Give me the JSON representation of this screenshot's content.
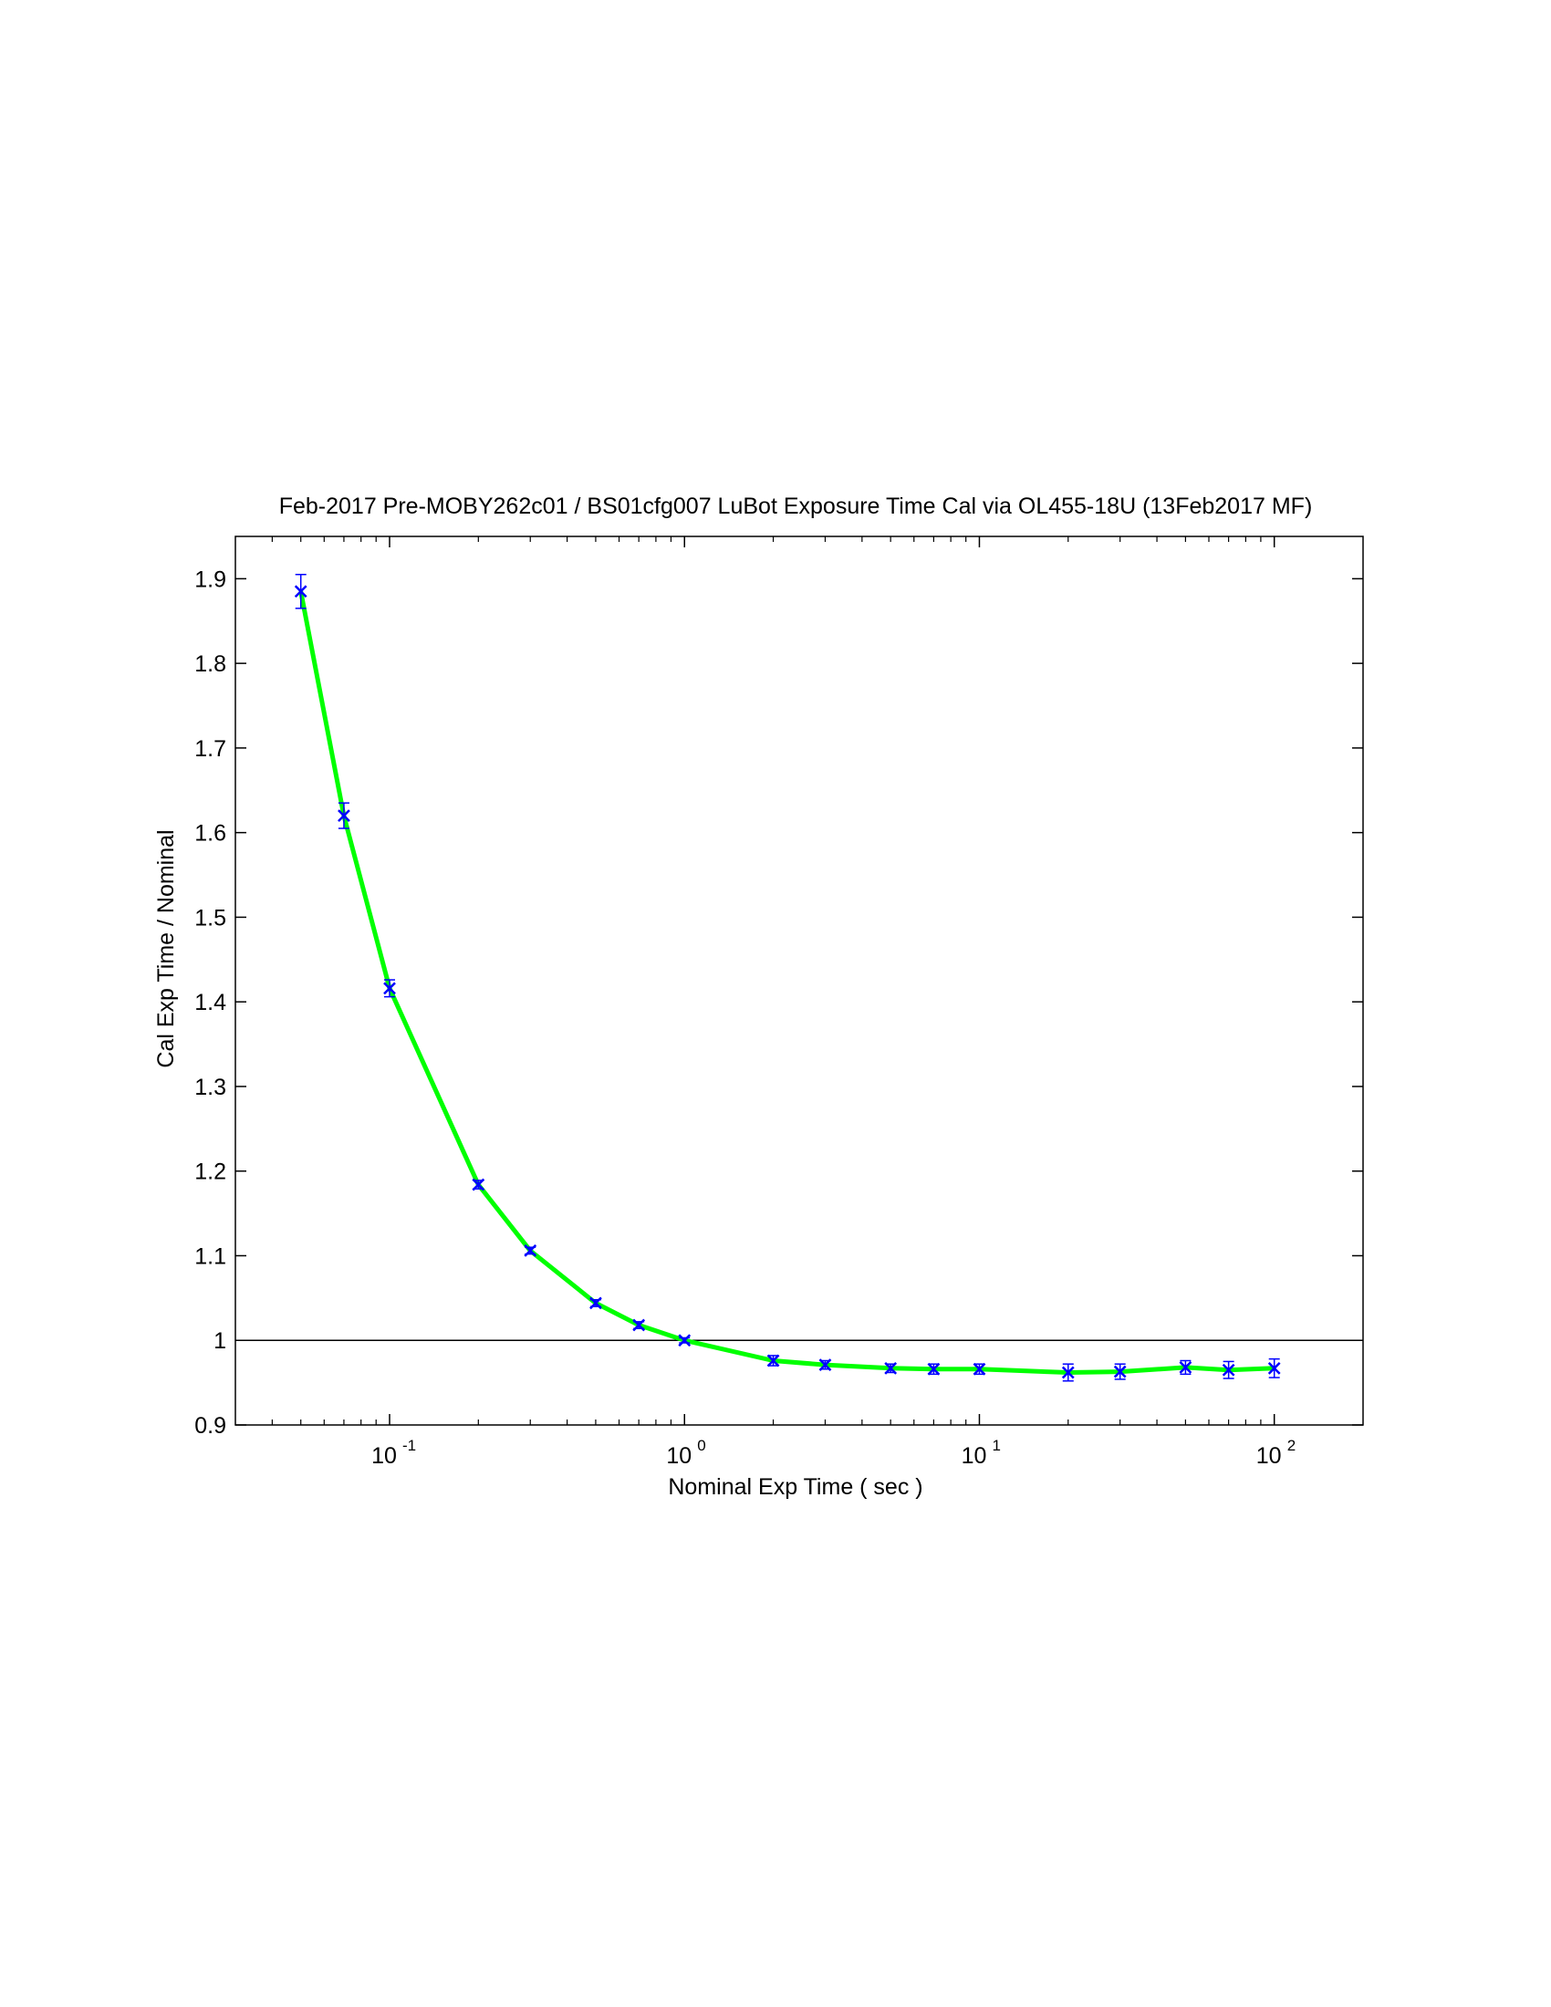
{
  "chart_data": {
    "type": "line",
    "title": "Feb-2017  Pre-MOBY262c01 / BS01cfg007  LuBot Exposure Time Cal via OL455-18U  (13Feb2017 MF)",
    "xlabel": "Nominal Exp Time  ( sec )",
    "ylabel": "Cal Exp Time  /  Nominal",
    "xscale": "log",
    "xlim": [
      0.03,
      200
    ],
    "ylim": [
      0.9,
      1.95
    ],
    "x_ticks": [
      {
        "value": 0.1,
        "base": "10",
        "exp": "-1"
      },
      {
        "value": 1,
        "base": "10",
        "exp": "0"
      },
      {
        "value": 10,
        "base": "10",
        "exp": "1"
      },
      {
        "value": 100,
        "base": "10",
        "exp": "2"
      }
    ],
    "y_ticks": [
      "0.9",
      "1",
      "1.1",
      "1.2",
      "1.3",
      "1.4",
      "1.5",
      "1.6",
      "1.7",
      "1.8",
      "1.9"
    ],
    "reference_line_y": 1,
    "grid": false,
    "colors": {
      "fit_line": "#00ff00",
      "markers": "#0000ff",
      "reference": "#000000"
    },
    "series": [
      {
        "marker": "x",
        "x": [
          0.05,
          0.07,
          0.1,
          0.2,
          0.3,
          0.5,
          0.7,
          1,
          2,
          3,
          5,
          7,
          10,
          20,
          30,
          50,
          70,
          100
        ],
        "y": [
          1.885,
          1.62,
          1.416,
          1.184,
          1.106,
          1.044,
          1.018,
          1.0,
          0.976,
          0.971,
          0.967,
          0.966,
          0.966,
          0.962,
          0.963,
          0.968,
          0.965,
          0.967
        ],
        "err": [
          0.02,
          0.015,
          0.01,
          0.005,
          0.004,
          0.004,
          0.004,
          0.003,
          0.006,
          0.005,
          0.005,
          0.006,
          0.006,
          0.01,
          0.009,
          0.008,
          0.01,
          0.011
        ]
      }
    ]
  }
}
